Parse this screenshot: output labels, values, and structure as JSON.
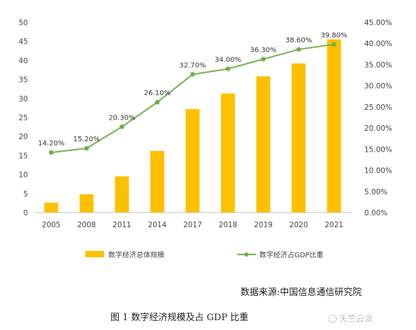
{
  "chart_data": {
    "type": "bar",
    "categories": [
      "2005",
      "2008",
      "2011",
      "2014",
      "2017",
      "2018",
      "2019",
      "2020",
      "2021"
    ],
    "series": [
      {
        "name": "数字经济总体规模",
        "type": "bar",
        "axis": "left",
        "values": [
          2.6,
          4.8,
          9.5,
          16.2,
          27.2,
          31.3,
          35.8,
          39.2,
          45.5
        ],
        "color": "#FFC000"
      },
      {
        "name": "数字经济占GDP比重",
        "type": "line",
        "axis": "right",
        "values": [
          14.2,
          15.2,
          20.3,
          26.1,
          32.7,
          34.0,
          36.3,
          38.6,
          39.8
        ],
        "labels": [
          "14.20%",
          "15.20%",
          "20.30%",
          "26.10%",
          "32.70%",
          "34.00%",
          "36.30%",
          "38.60%",
          "39.80%"
        ],
        "color": "#70AD47"
      }
    ],
    "y_left": {
      "min": 0,
      "max": 50,
      "ticks": [
        "0",
        "5",
        "10",
        "15",
        "20",
        "25",
        "30",
        "35",
        "40",
        "45",
        "50"
      ]
    },
    "y_right": {
      "min": 0,
      "max": 45,
      "ticks": [
        "0.00%",
        "5.00%",
        "10.00%",
        "15.00%",
        "20.00%",
        "25.00%",
        "30.00%",
        "35.00%",
        "40.00%",
        "45.00%"
      ]
    },
    "grid": false,
    "legend": "bottom"
  },
  "source_text": "数据来源:中国信息通信研究院",
  "caption_text": "图 1  数字经济规模及占 GDP 比重",
  "watermark_text": "天竺云淡"
}
